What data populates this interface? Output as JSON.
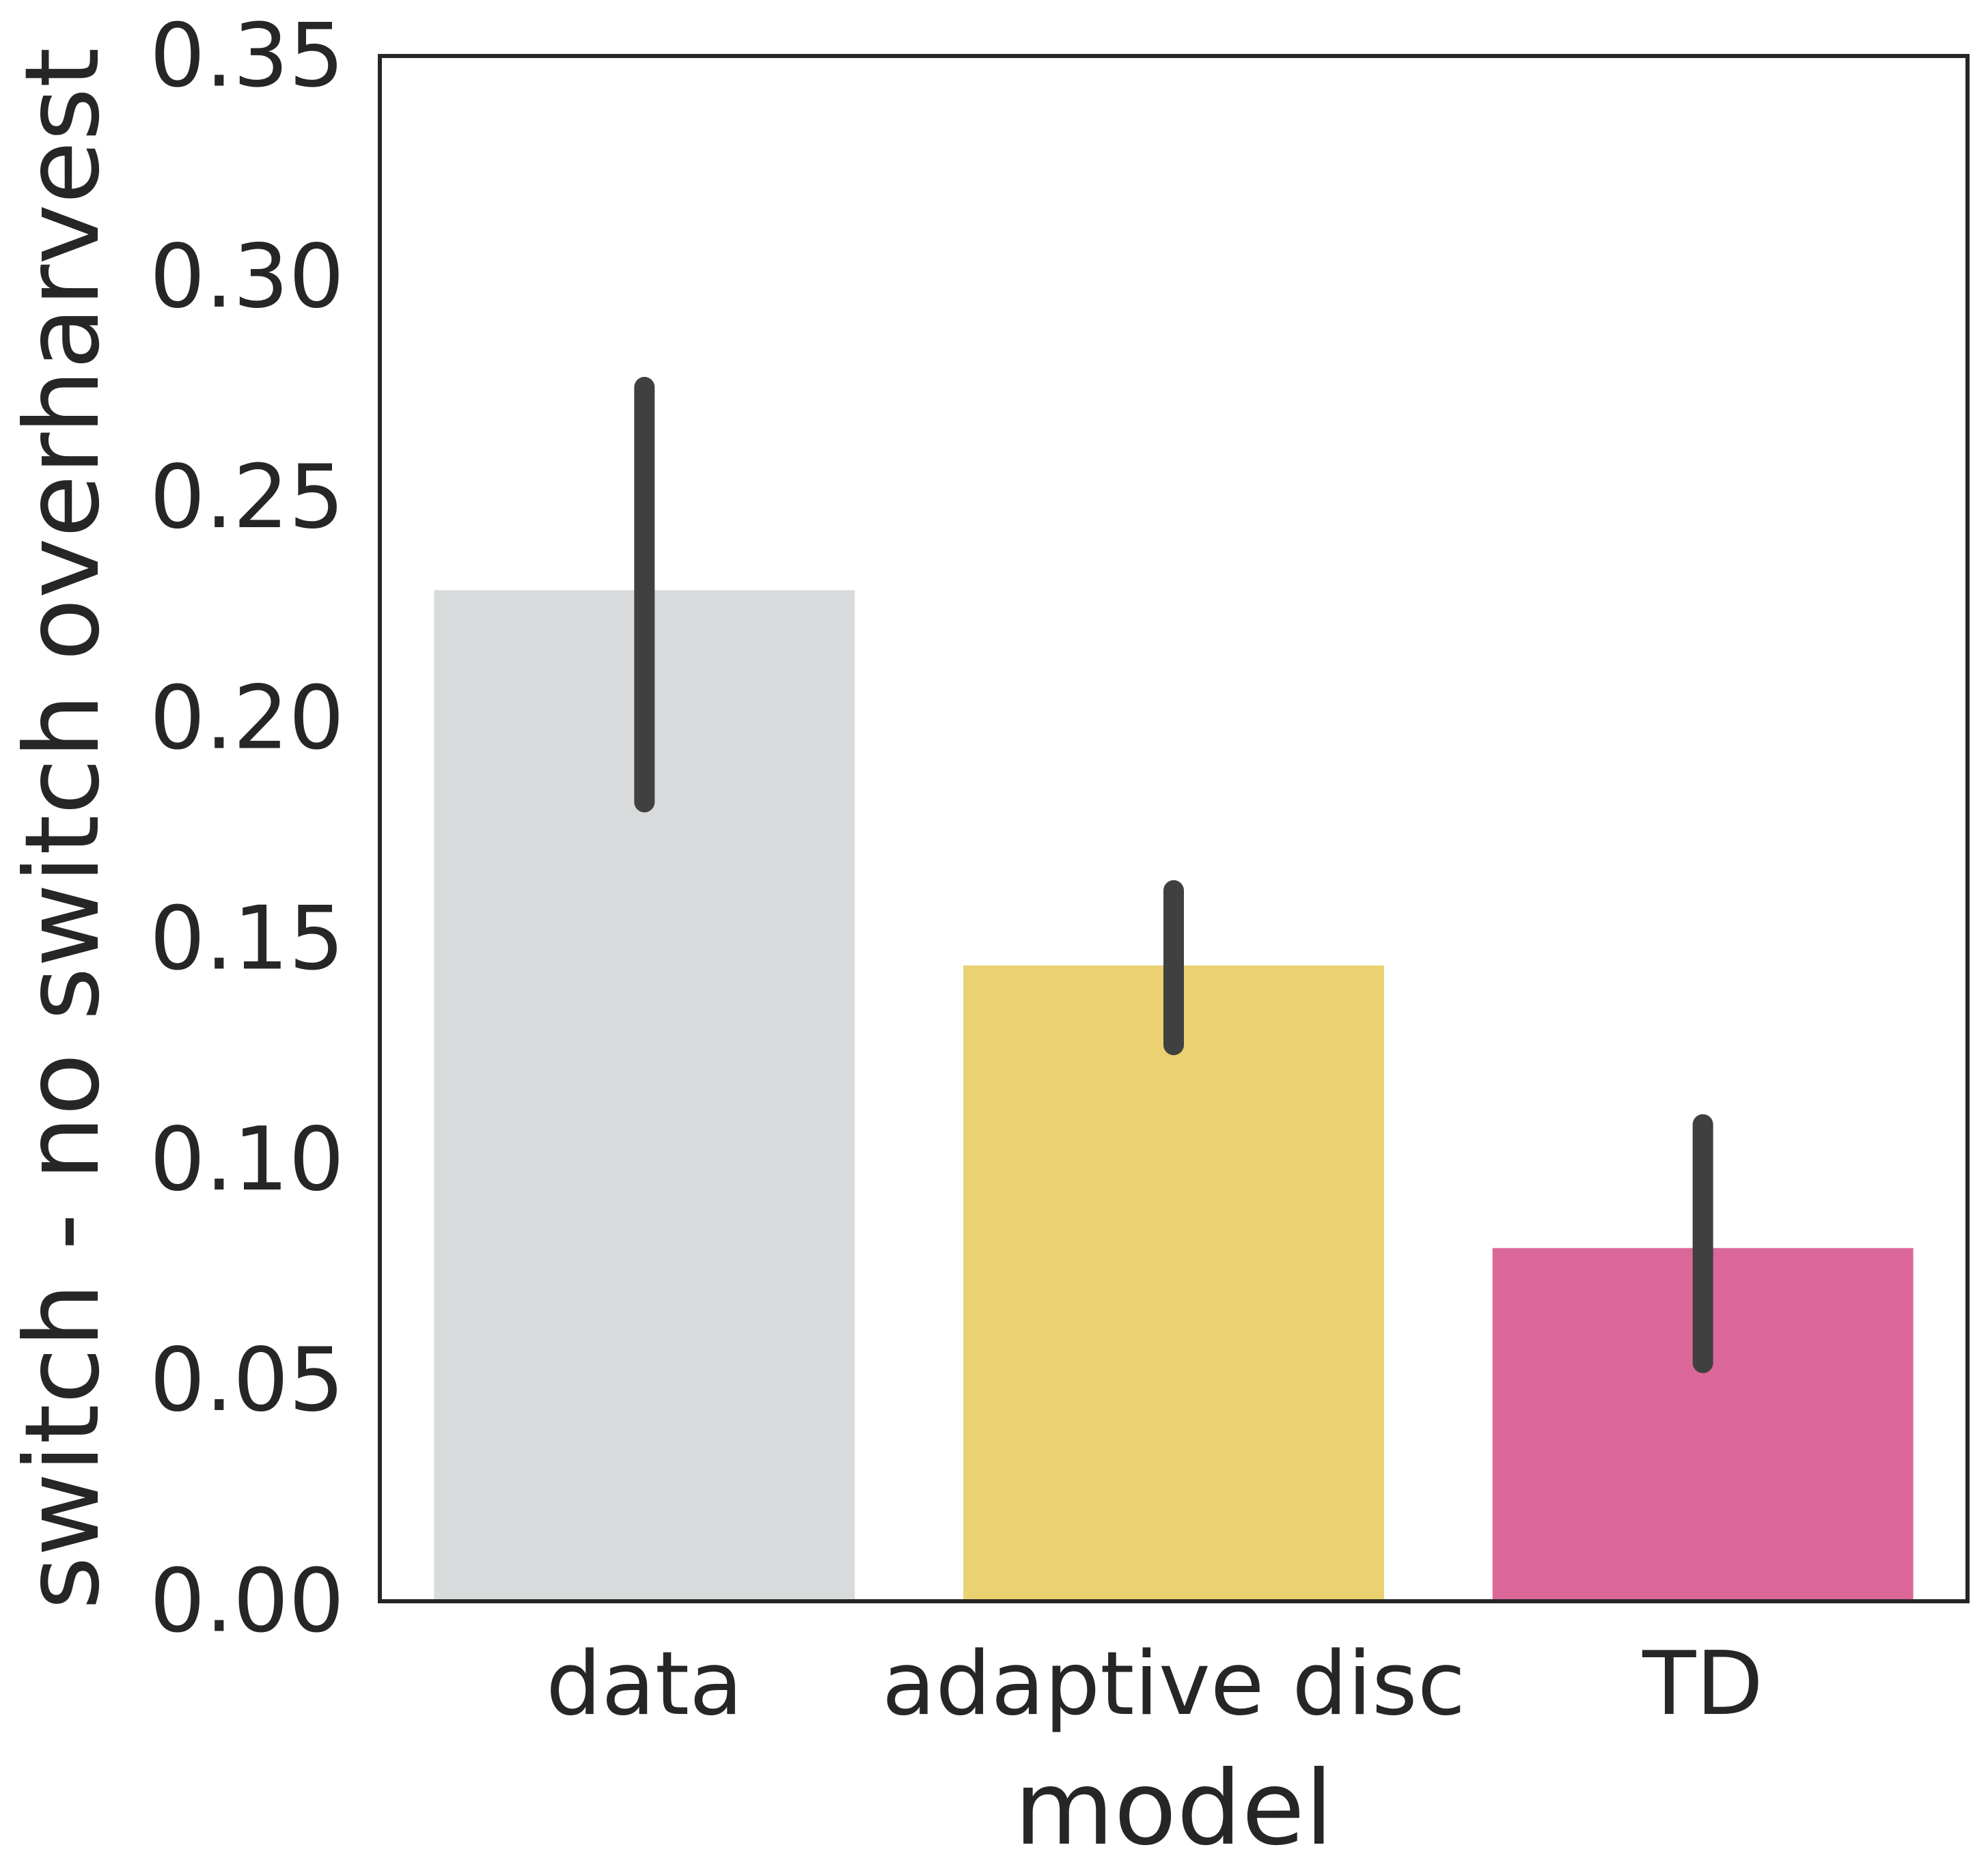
{
  "chart_data": {
    "type": "bar",
    "title": "",
    "xlabel": "model",
    "ylabel": "switch - no switch overharvest",
    "categories": [
      "data",
      "adaptive disc",
      "TD"
    ],
    "values": [
      0.229,
      0.144,
      0.08
    ],
    "error_low": [
      0.181,
      0.126,
      0.054
    ],
    "error_high": [
      0.275,
      0.161,
      0.108
    ],
    "ylim": [
      0,
      0.35
    ],
    "yticks": [
      "0.00",
      "0.05",
      "0.10",
      "0.15",
      "0.20",
      "0.25",
      "0.30",
      "0.35"
    ],
    "grid": false,
    "legend": "none",
    "colors": [
      "#d9dadb",
      "#e9d26f",
      "#dc6799"
    ],
    "error_bar_color": "#404040",
    "frame_color": "#262626"
  }
}
